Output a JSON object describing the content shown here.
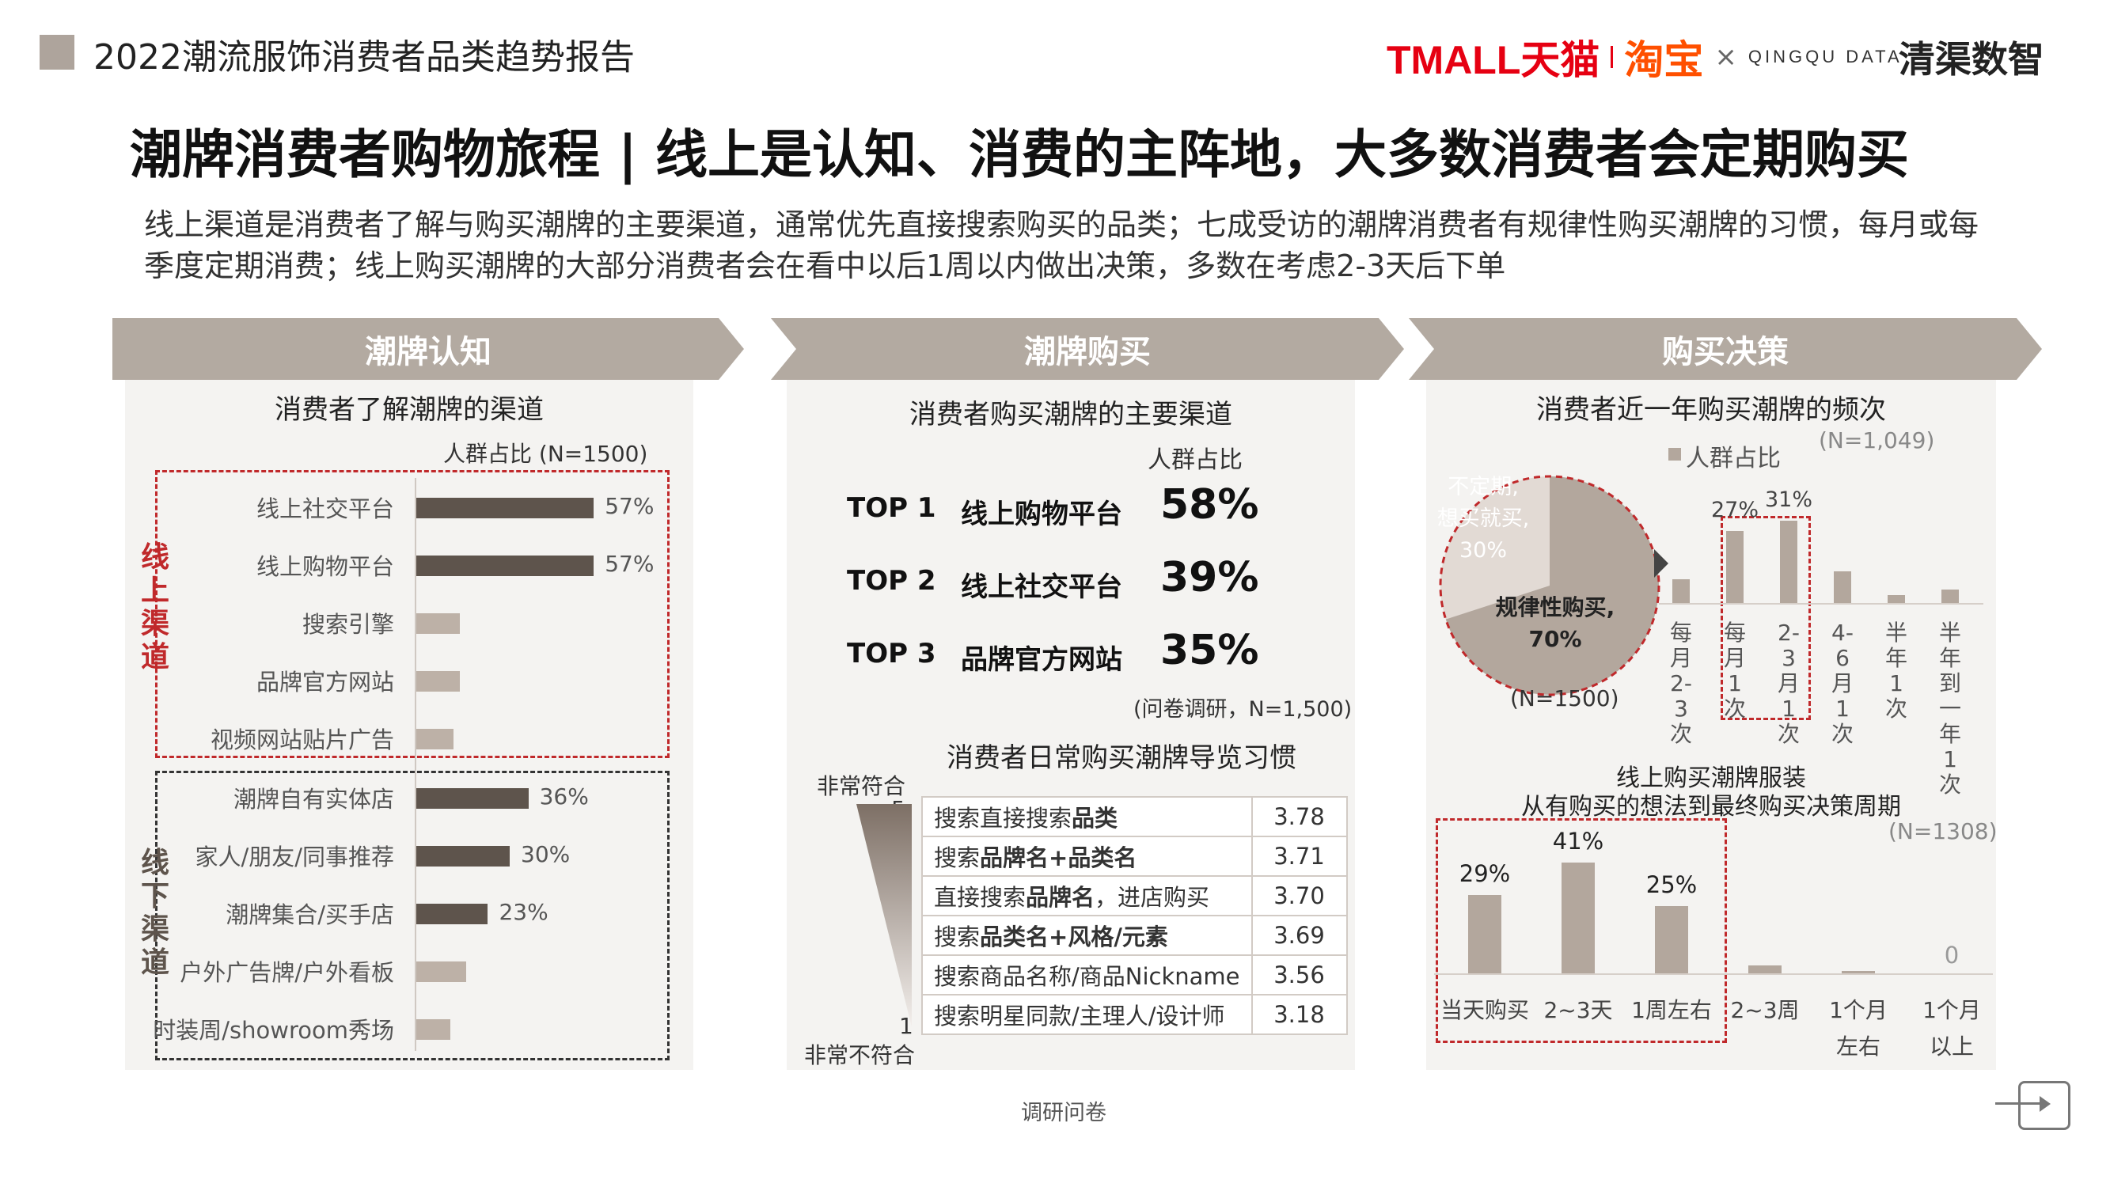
{
  "header": {
    "report_title": "2022潮流服饰消费者品类趋势报告",
    "logos": {
      "tmall": "TMALL天猫",
      "taobao": "淘宝",
      "times": "×",
      "qingqu_en": "QINGQU DATA",
      "qingqu_cn": "清渠数智"
    }
  },
  "headline": "潮牌消费者购物旅程 | 线上是认知、消费的主阵地，大多数消费者会定期购买",
  "intro": "线上渠道是消费者了解与购买潮牌的主要渠道，通常优先直接搜索购买的品类；七成受访的潮牌消费者有规律性购买潮牌的习惯，每月或每季度定期消费；线上购买潮牌的大部分消费者会在看中以后1周以内做出决策，多数在考虑2-3天后下单",
  "sections": [
    {
      "title": "潮牌认知"
    },
    {
      "title": "潮牌购买"
    },
    {
      "title": "购买决策"
    }
  ],
  "panel1": {
    "chart_title": "消费者了解潮牌的渠道",
    "legend": "人群占比 (N=1500)",
    "online_group": "线上渠道",
    "offline_group": "线下渠道"
  },
  "panel2": {
    "title": "消费者购买潮牌的主要渠道",
    "col_header": "人群占比",
    "top": [
      {
        "rank": "TOP 1",
        "channel": "线上购物平台",
        "pct": "58%"
      },
      {
        "rank": "TOP 2",
        "channel": "线上社交平台",
        "pct": "39%"
      },
      {
        "rank": "TOP 3",
        "channel": "品牌官方网站",
        "pct": "35%"
      }
    ],
    "note": "(问卷调研，N=1,500)",
    "habit_title": "消费者日常购买潮牌导览习惯",
    "scale_top_label": "非常符合",
    "scale_top_value": "5",
    "scale_bottom_value": "1",
    "scale_bottom_label": "非常不符合",
    "habits": [
      {
        "pre": "搜索直接搜索",
        "bold": "品类",
        "post": "",
        "score": "3.78"
      },
      {
        "pre": "搜索",
        "bold": "品牌名+品类名",
        "post": "",
        "score": "3.71"
      },
      {
        "pre": "直接搜索",
        "bold": "品牌名",
        "post": "，进店购买",
        "score": "3.70"
      },
      {
        "pre": "搜索",
        "bold": "品类名+风格/元素",
        "post": "",
        "score": "3.69"
      },
      {
        "pre": "搜索商品名称/商品Nickname",
        "bold": "",
        "post": "",
        "score": "3.56"
      },
      {
        "pre": "搜索明星同款/主理人/设计师",
        "bold": "",
        "post": "",
        "score": "3.18"
      }
    ]
  },
  "panel3": {
    "freq_title": "消费者近一年购买潮牌的频次",
    "freq_n": "(N=1,049)",
    "legend": "人群占比",
    "pie_n": "(N=1500)",
    "decision_title_1": "线上购买潮牌服装",
    "decision_title_2": "从有购买的想法到最终购买决策周期",
    "decision_n": "(N=1308)"
  },
  "footer": {
    "source": "调研问卷"
  },
  "chart_data": [
    {
      "type": "bar",
      "orientation": "horizontal",
      "title": "消费者了解潮牌的渠道",
      "legend": "人群占比 (N=1500)",
      "categories": [
        "线上社交平台",
        "线上购物平台",
        "搜索引擎",
        "品牌官方网站",
        "视频网站贴片广告",
        "潮牌自有实体店",
        "家人/朋友/同事推荐",
        "潮牌集合/买手店",
        "户外广告牌/户外看板",
        "时装周/showroom秀场"
      ],
      "values": [
        57,
        57,
        14,
        14,
        12,
        36,
        30,
        23,
        16,
        11
      ],
      "data_labels": [
        "57%",
        "57%",
        "",
        "",
        "",
        "36%",
        "30%",
        "23%",
        "",
        ""
      ],
      "highlight": [
        true,
        true,
        false,
        false,
        false,
        true,
        true,
        true,
        false,
        false
      ],
      "xlim": [
        0,
        60
      ],
      "colors": {
        "highlight": "#5e544c",
        "normal": "#bdb1a7"
      }
    },
    {
      "type": "table",
      "title": "消费者日常购买潮牌导览习惯",
      "rows": [
        "搜索直接搜索品类",
        "搜索品牌名+品类名",
        "直接搜索品牌名，进店购买",
        "搜索品类名+风格/元素",
        "搜索商品名称/商品Nickname",
        "搜索明星同款/主理人/设计师"
      ],
      "values": [
        3.78,
        3.71,
        3.7,
        3.69,
        3.56,
        3.18
      ],
      "scale": [
        1,
        5
      ]
    },
    {
      "type": "pie",
      "title": "消费者近一年购买潮牌的频次",
      "slices": [
        {
          "label_1": "规律性购买,",
          "label_2": "70%",
          "value": 70,
          "color": "#b3a79d"
        },
        {
          "label_1": "不定期,",
          "label_2": "想买就买,",
          "label_3": "30%",
          "value": 30,
          "color": "#e2dad4"
        }
      ],
      "n": "(N=1500)"
    },
    {
      "type": "bar",
      "title": "消费者近一年购买潮牌的频次",
      "categories": [
        "每月2-3次",
        "每月1次",
        "2-3月1次",
        "4-6月1次",
        "半年1次",
        "半年到一年1次"
      ],
      "category_glyphs": [
        [
          "每",
          "月",
          "2-3",
          "次"
        ],
        [
          "每",
          "月",
          "1",
          "次"
        ],
        [
          "2-3",
          "月",
          "1",
          "次"
        ],
        [
          "4-6",
          "月",
          "1",
          "次"
        ],
        [
          "半",
          "年",
          "1",
          "次"
        ],
        [
          "半",
          "年",
          "到",
          "一",
          "年",
          "1",
          "次"
        ]
      ],
      "values": [
        9,
        27,
        31,
        12,
        3,
        5
      ],
      "data_labels": [
        "",
        "27%",
        "31%",
        "",
        "",
        ""
      ],
      "highlight_range": [
        1,
        2
      ],
      "ylim": [
        0,
        35
      ],
      "color": "#b3a79d"
    },
    {
      "type": "bar",
      "title": "从有购买的想法到最终购买决策周期",
      "categories": [
        "当天购买",
        "2~3天",
        "1周左右",
        "2~3周",
        "1个月左右",
        "1个月以上"
      ],
      "category_lines": [
        [
          "当天购买"
        ],
        [
          "2~3天"
        ],
        [
          "1周左右"
        ],
        [
          "2~3周"
        ],
        [
          "1个月",
          "左右"
        ],
        [
          "1个月",
          "以上"
        ]
      ],
      "values": [
        29,
        41,
        25,
        3,
        1,
        0
      ],
      "data_labels": [
        "29%",
        "41%",
        "25%",
        "",
        "",
        "0"
      ],
      "highlight_range": [
        0,
        2
      ],
      "ylim": [
        0,
        45
      ],
      "color": "#b3a79d"
    }
  ]
}
